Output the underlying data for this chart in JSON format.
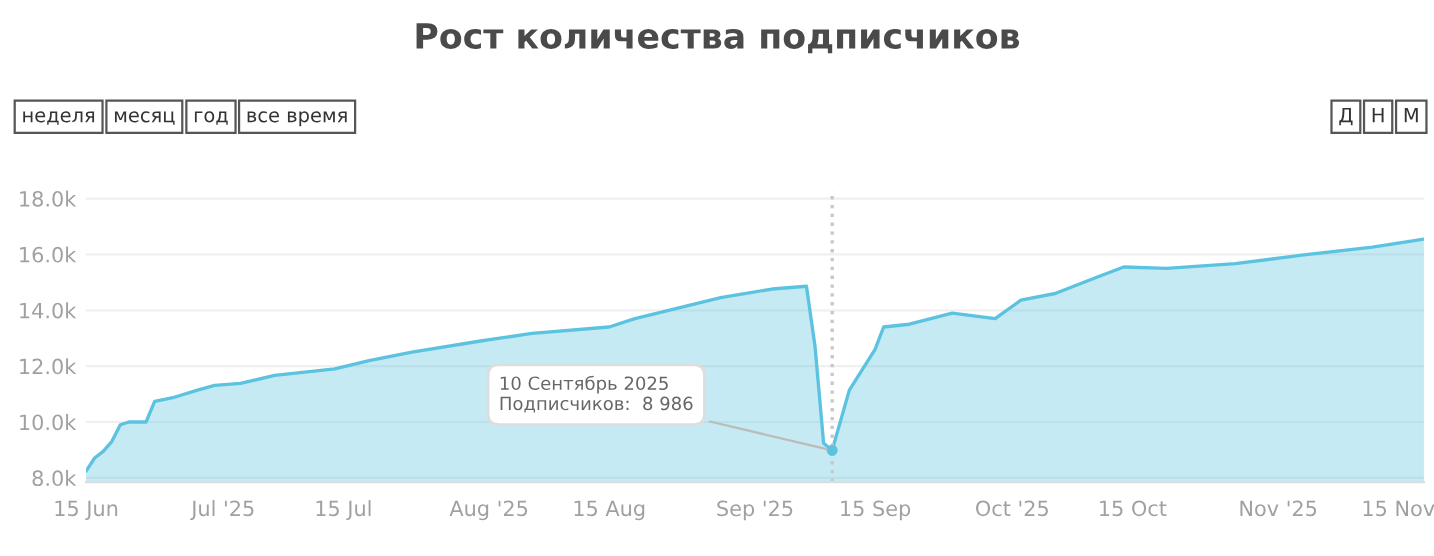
{
  "chart_data": {
    "type": "area",
    "title": "Рост количества подписчиков",
    "x": [
      "2025-06-15",
      "2025-06-16",
      "2025-06-17",
      "2025-06-18",
      "2025-06-19",
      "2025-06-20",
      "2025-06-22",
      "2025-06-23",
      "2025-06-25",
      "2025-06-28",
      "2025-06-30",
      "2025-07-03",
      "2025-07-07",
      "2025-07-14",
      "2025-07-18",
      "2025-07-23",
      "2025-07-31",
      "2025-08-06",
      "2025-08-15",
      "2025-08-18",
      "2025-08-28",
      "2025-09-03",
      "2025-09-07",
      "2025-09-08",
      "2025-09-09",
      "2025-09-10",
      "2025-09-12",
      "2025-09-15",
      "2025-09-16",
      "2025-09-19",
      "2025-09-24",
      "2025-09-29",
      "2025-10-02",
      "2025-10-06",
      "2025-10-11",
      "2025-10-14",
      "2025-10-19",
      "2025-10-27",
      "2025-11-04",
      "2025-11-12",
      "2025-11-18"
    ],
    "series": [
      {
        "color": "#5bc3df",
        "values": [
          8240,
          8710,
          8950,
          9300,
          9900,
          10000,
          10000,
          10740,
          10860,
          11140,
          11310,
          11380,
          11670,
          11900,
          12200,
          12500,
          12900,
          13170,
          13400,
          13700,
          14450,
          14760,
          14860,
          12700,
          9240,
          8986,
          11140,
          12600,
          13400,
          13500,
          13900,
          13700,
          14360,
          14600,
          15200,
          15550,
          15500,
          15670,
          15980,
          16260,
          16550
        ]
      }
    ],
    "xlim": [
      "2025-06-15",
      "2025-11-18"
    ],
    "xticks": [
      {
        "value": "2025-06-15",
        "label": "15 Jun"
      },
      {
        "value": "2025-07-01",
        "label": "Jul '25"
      },
      {
        "value": "2025-07-15",
        "label": "15 Jul"
      },
      {
        "value": "2025-08-01",
        "label": "Aug '25"
      },
      {
        "value": "2025-08-15",
        "label": "15 Aug"
      },
      {
        "value": "2025-09-01",
        "label": "Sep '25"
      },
      {
        "value": "2025-09-15",
        "label": "15 Sep"
      },
      {
        "value": "2025-10-01",
        "label": "Oct '25"
      },
      {
        "value": "2025-10-15",
        "label": "15 Oct"
      },
      {
        "value": "2025-11-01",
        "label": "Nov '25"
      },
      {
        "value": "2025-11-15",
        "label": "15 Nov"
      }
    ],
    "ylim": [
      7850,
      18300
    ],
    "yticks": [
      {
        "value": 8000,
        "label": "8.0k"
      },
      {
        "value": 10000,
        "label": "10.0k"
      },
      {
        "value": 12000,
        "label": "12.0k"
      },
      {
        "value": 14000,
        "label": "14.0k"
      },
      {
        "value": 16000,
        "label": "16.0k"
      },
      {
        "value": 18000,
        "label": "18.0k"
      }
    ],
    "grid": "y",
    "ref_lines": [
      {
        "axis": "x",
        "value": "2025-09-10",
        "color": "#c8c8c8",
        "line_style": "dotted"
      }
    ],
    "annotations": [
      {
        "text": "10 Сентябрь 2025\nПодписчиков:  8 986",
        "x": "2025-09-10",
        "y": 8986
      },
      "неделя",
      "месяц",
      "год",
      "все время",
      "Д",
      "Н",
      "М"
    ]
  }
}
